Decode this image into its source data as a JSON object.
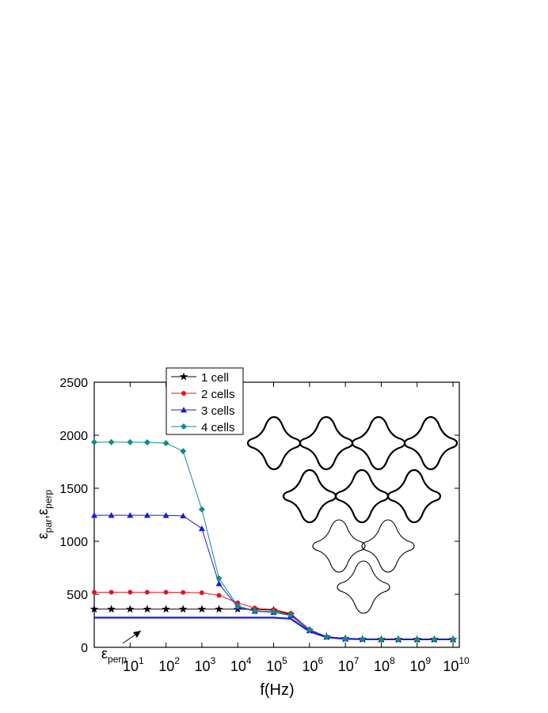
{
  "chart_data": {
    "type": "line",
    "xlabel": "f(Hz)",
    "ylabel": [
      "ε",
      "par",
      ",ε",
      "perp"
    ],
    "annotation": [
      "ε",
      "perp"
    ],
    "log_x": true,
    "xlim": [
      1,
      15000000000
    ],
    "xticks": [
      {
        "value": 10,
        "label": "10",
        "exponent": "1"
      },
      {
        "value": 100,
        "label": "10",
        "exponent": "2"
      },
      {
        "value": 1000,
        "label": "10",
        "exponent": "3"
      },
      {
        "value": 10000,
        "label": "10",
        "exponent": "4"
      },
      {
        "value": 100000,
        "label": "10",
        "exponent": "5"
      },
      {
        "value": 1000000,
        "label": "10",
        "exponent": "6"
      },
      {
        "value": 10000000,
        "label": "10",
        "exponent": "7"
      },
      {
        "value": 100000000,
        "label": "10",
        "exponent": "8"
      },
      {
        "value": 1000000000,
        "label": "10",
        "exponent": "9"
      },
      {
        "value": 10000000000,
        "label": "10",
        "exponent": "10"
      }
    ],
    "ylim": [
      0,
      2500
    ],
    "yticks": [
      0,
      500,
      1000,
      1500,
      2000,
      2500
    ],
    "x": [
      1,
      3,
      10,
      30,
      100,
      300,
      1000,
      3000,
      10000,
      30000,
      100000,
      300000,
      1000000,
      3000000,
      10000000,
      30000000,
      100000000,
      300000000,
      1000000000,
      3000000000,
      10000000000
    ],
    "series": [
      {
        "name": "1 cell",
        "color": "#000000",
        "marker": "star",
        "values": [
          360,
          360,
          360,
          360,
          360,
          360,
          360,
          360,
          360,
          358,
          350,
          310,
          160,
          100,
          82,
          77,
          75,
          75,
          75,
          75,
          75
        ]
      },
      {
        "name": "2 cells",
        "color": "#e8141c",
        "marker": "circle",
        "values": [
          520,
          520,
          520,
          520,
          520,
          518,
          515,
          490,
          420,
          370,
          355,
          320,
          170,
          100,
          82,
          77,
          75,
          75,
          75,
          75,
          75
        ]
      },
      {
        "name": "3 cells",
        "color": "#1a1adb",
        "marker": "triangle",
        "values": [
          1245,
          1245,
          1245,
          1245,
          1244,
          1240,
          1120,
          600,
          380,
          340,
          330,
          300,
          160,
          98,
          81,
          77,
          75,
          75,
          75,
          75,
          75
        ]
      },
      {
        "name": "4 cells",
        "color": "#138a8a",
        "marker": "diamond",
        "values": [
          1935,
          1935,
          1935,
          1933,
          1925,
          1850,
          1300,
          650,
          390,
          345,
          335,
          305,
          165,
          99,
          81,
          77,
          75,
          75,
          75,
          75,
          75
        ]
      },
      {
        "color": "#1a1adb",
        "marker": "none",
        "values": [
          280,
          280,
          280,
          280,
          280,
          280,
          280,
          280,
          280,
          280,
          280,
          270,
          150,
          95,
          80,
          76,
          75,
          75,
          75,
          75,
          75
        ]
      }
    ]
  }
}
